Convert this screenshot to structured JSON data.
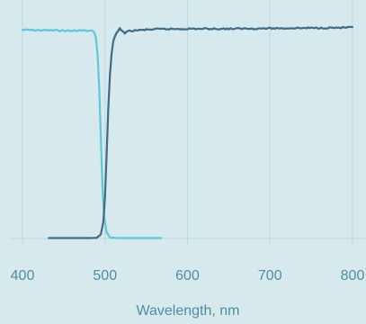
{
  "chart_data": {
    "type": "line",
    "xlabel": "Wavelength, nm",
    "ylabel": "",
    "xlim": [
      400,
      800
    ],
    "ylim": [
      0,
      100
    ],
    "x_ticks": [
      400,
      500,
      600,
      700,
      800
    ],
    "grid": true,
    "series": [
      {
        "color": "#5ec8d8",
        "x": [
          400,
          420,
          440,
          460,
          470,
          480,
          486,
          489,
          491,
          493,
          495,
          497,
          499,
          502,
          506,
          515,
          530,
          550,
          568
        ],
        "y": [
          99.5,
          99.3,
          99.2,
          99,
          99.2,
          99,
          99,
          96,
          88,
          72,
          48,
          24,
          10,
          3,
          0.5,
          0.2,
          0.2,
          0.2,
          0.2
        ]
      },
      {
        "color": "#3f6b85",
        "x": [
          432,
          460,
          480,
          490,
          495,
          498,
          500,
          502,
          504,
          506,
          508,
          510,
          514,
          518,
          524,
          530,
          540,
          560,
          600,
          650,
          700,
          750,
          800
        ],
        "y": [
          0.2,
          0.2,
          0.2,
          0.3,
          2,
          8,
          20,
          40,
          62,
          78,
          88,
          94,
          98,
          100,
          98,
          99,
          99.3,
          99.8,
          100,
          100,
          100.2,
          100.4,
          100.6
        ]
      }
    ]
  }
}
